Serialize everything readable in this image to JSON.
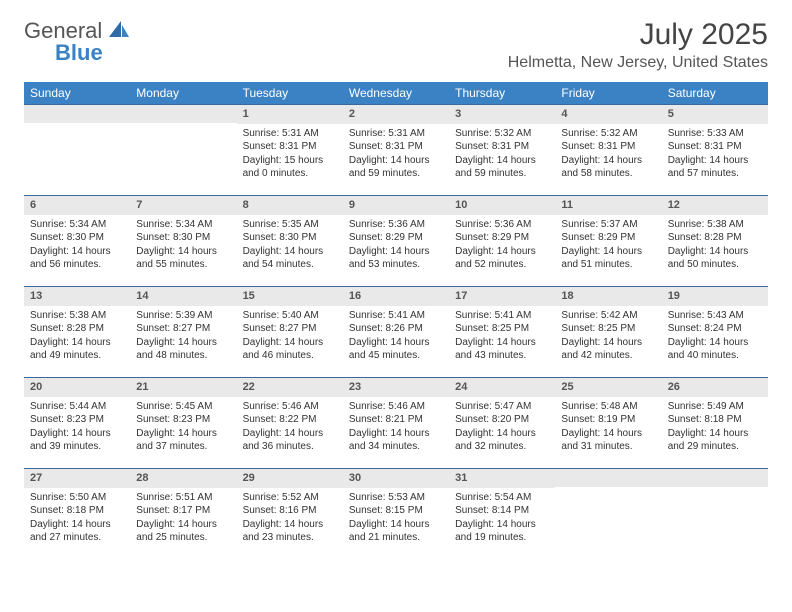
{
  "logo": {
    "general": "General",
    "blue": "Blue"
  },
  "title": "July 2025",
  "location": "Helmetta, New Jersey, United States",
  "colors": {
    "header_bg": "#3b82c4",
    "header_text": "#ffffff",
    "daynum_bg": "#e9e9e9",
    "border": "#3b6a9a",
    "text": "#333333"
  },
  "weekdays": [
    "Sunday",
    "Monday",
    "Tuesday",
    "Wednesday",
    "Thursday",
    "Friday",
    "Saturday"
  ],
  "weeks": [
    [
      null,
      null,
      {
        "n": "1",
        "sr": "Sunrise: 5:31 AM",
        "ss": "Sunset: 8:31 PM",
        "d1": "Daylight: 15 hours",
        "d2": "and 0 minutes."
      },
      {
        "n": "2",
        "sr": "Sunrise: 5:31 AM",
        "ss": "Sunset: 8:31 PM",
        "d1": "Daylight: 14 hours",
        "d2": "and 59 minutes."
      },
      {
        "n": "3",
        "sr": "Sunrise: 5:32 AM",
        "ss": "Sunset: 8:31 PM",
        "d1": "Daylight: 14 hours",
        "d2": "and 59 minutes."
      },
      {
        "n": "4",
        "sr": "Sunrise: 5:32 AM",
        "ss": "Sunset: 8:31 PM",
        "d1": "Daylight: 14 hours",
        "d2": "and 58 minutes."
      },
      {
        "n": "5",
        "sr": "Sunrise: 5:33 AM",
        "ss": "Sunset: 8:31 PM",
        "d1": "Daylight: 14 hours",
        "d2": "and 57 minutes."
      }
    ],
    [
      {
        "n": "6",
        "sr": "Sunrise: 5:34 AM",
        "ss": "Sunset: 8:30 PM",
        "d1": "Daylight: 14 hours",
        "d2": "and 56 minutes."
      },
      {
        "n": "7",
        "sr": "Sunrise: 5:34 AM",
        "ss": "Sunset: 8:30 PM",
        "d1": "Daylight: 14 hours",
        "d2": "and 55 minutes."
      },
      {
        "n": "8",
        "sr": "Sunrise: 5:35 AM",
        "ss": "Sunset: 8:30 PM",
        "d1": "Daylight: 14 hours",
        "d2": "and 54 minutes."
      },
      {
        "n": "9",
        "sr": "Sunrise: 5:36 AM",
        "ss": "Sunset: 8:29 PM",
        "d1": "Daylight: 14 hours",
        "d2": "and 53 minutes."
      },
      {
        "n": "10",
        "sr": "Sunrise: 5:36 AM",
        "ss": "Sunset: 8:29 PM",
        "d1": "Daylight: 14 hours",
        "d2": "and 52 minutes."
      },
      {
        "n": "11",
        "sr": "Sunrise: 5:37 AM",
        "ss": "Sunset: 8:29 PM",
        "d1": "Daylight: 14 hours",
        "d2": "and 51 minutes."
      },
      {
        "n": "12",
        "sr": "Sunrise: 5:38 AM",
        "ss": "Sunset: 8:28 PM",
        "d1": "Daylight: 14 hours",
        "d2": "and 50 minutes."
      }
    ],
    [
      {
        "n": "13",
        "sr": "Sunrise: 5:38 AM",
        "ss": "Sunset: 8:28 PM",
        "d1": "Daylight: 14 hours",
        "d2": "and 49 minutes."
      },
      {
        "n": "14",
        "sr": "Sunrise: 5:39 AM",
        "ss": "Sunset: 8:27 PM",
        "d1": "Daylight: 14 hours",
        "d2": "and 48 minutes."
      },
      {
        "n": "15",
        "sr": "Sunrise: 5:40 AM",
        "ss": "Sunset: 8:27 PM",
        "d1": "Daylight: 14 hours",
        "d2": "and 46 minutes."
      },
      {
        "n": "16",
        "sr": "Sunrise: 5:41 AM",
        "ss": "Sunset: 8:26 PM",
        "d1": "Daylight: 14 hours",
        "d2": "and 45 minutes."
      },
      {
        "n": "17",
        "sr": "Sunrise: 5:41 AM",
        "ss": "Sunset: 8:25 PM",
        "d1": "Daylight: 14 hours",
        "d2": "and 43 minutes."
      },
      {
        "n": "18",
        "sr": "Sunrise: 5:42 AM",
        "ss": "Sunset: 8:25 PM",
        "d1": "Daylight: 14 hours",
        "d2": "and 42 minutes."
      },
      {
        "n": "19",
        "sr": "Sunrise: 5:43 AM",
        "ss": "Sunset: 8:24 PM",
        "d1": "Daylight: 14 hours",
        "d2": "and 40 minutes."
      }
    ],
    [
      {
        "n": "20",
        "sr": "Sunrise: 5:44 AM",
        "ss": "Sunset: 8:23 PM",
        "d1": "Daylight: 14 hours",
        "d2": "and 39 minutes."
      },
      {
        "n": "21",
        "sr": "Sunrise: 5:45 AM",
        "ss": "Sunset: 8:23 PM",
        "d1": "Daylight: 14 hours",
        "d2": "and 37 minutes."
      },
      {
        "n": "22",
        "sr": "Sunrise: 5:46 AM",
        "ss": "Sunset: 8:22 PM",
        "d1": "Daylight: 14 hours",
        "d2": "and 36 minutes."
      },
      {
        "n": "23",
        "sr": "Sunrise: 5:46 AM",
        "ss": "Sunset: 8:21 PM",
        "d1": "Daylight: 14 hours",
        "d2": "and 34 minutes."
      },
      {
        "n": "24",
        "sr": "Sunrise: 5:47 AM",
        "ss": "Sunset: 8:20 PM",
        "d1": "Daylight: 14 hours",
        "d2": "and 32 minutes."
      },
      {
        "n": "25",
        "sr": "Sunrise: 5:48 AM",
        "ss": "Sunset: 8:19 PM",
        "d1": "Daylight: 14 hours",
        "d2": "and 31 minutes."
      },
      {
        "n": "26",
        "sr": "Sunrise: 5:49 AM",
        "ss": "Sunset: 8:18 PM",
        "d1": "Daylight: 14 hours",
        "d2": "and 29 minutes."
      }
    ],
    [
      {
        "n": "27",
        "sr": "Sunrise: 5:50 AM",
        "ss": "Sunset: 8:18 PM",
        "d1": "Daylight: 14 hours",
        "d2": "and 27 minutes."
      },
      {
        "n": "28",
        "sr": "Sunrise: 5:51 AM",
        "ss": "Sunset: 8:17 PM",
        "d1": "Daylight: 14 hours",
        "d2": "and 25 minutes."
      },
      {
        "n": "29",
        "sr": "Sunrise: 5:52 AM",
        "ss": "Sunset: 8:16 PM",
        "d1": "Daylight: 14 hours",
        "d2": "and 23 minutes."
      },
      {
        "n": "30",
        "sr": "Sunrise: 5:53 AM",
        "ss": "Sunset: 8:15 PM",
        "d1": "Daylight: 14 hours",
        "d2": "and 21 minutes."
      },
      {
        "n": "31",
        "sr": "Sunrise: 5:54 AM",
        "ss": "Sunset: 8:14 PM",
        "d1": "Daylight: 14 hours",
        "d2": "and 19 minutes."
      },
      null,
      null
    ]
  ]
}
